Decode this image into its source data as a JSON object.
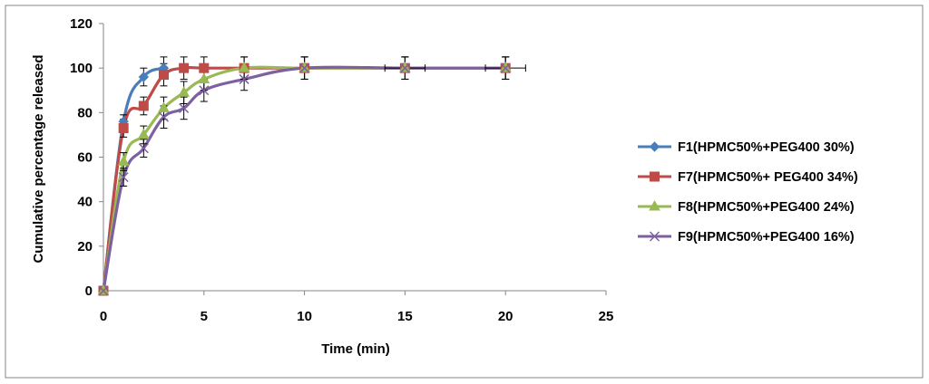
{
  "chart_data": {
    "type": "line",
    "xlabel": "Time (min)",
    "ylabel": "Cumulative percentage released",
    "xlim": [
      0,
      25
    ],
    "ylim": [
      0,
      120
    ],
    "x_ticks": [
      0,
      5,
      10,
      15,
      20,
      25
    ],
    "y_ticks": [
      0,
      20,
      40,
      60,
      80,
      100,
      120
    ],
    "grid": false,
    "legend_position": "right",
    "error_bars": true,
    "series": [
      {
        "name": "F1(HPMC50%+PEG400 30%)",
        "color": "#4a7ebb",
        "marker": "diamond",
        "points": [
          {
            "x": 0,
            "y": 0,
            "err": 0
          },
          {
            "x": 1,
            "y": 76,
            "err": 3
          },
          {
            "x": 2,
            "y": 96,
            "err": 4
          },
          {
            "x": 3,
            "y": 100,
            "err": 5
          }
        ]
      },
      {
        "name": "F7(HPMC50%+ PEG400 34%)",
        "color": "#be4b48",
        "marker": "square",
        "points": [
          {
            "x": 0,
            "y": 0,
            "err": 0
          },
          {
            "x": 1,
            "y": 73,
            "err": 4
          },
          {
            "x": 2,
            "y": 83,
            "err": 4
          },
          {
            "x": 3,
            "y": 97,
            "err": 5
          },
          {
            "x": 4,
            "y": 100,
            "err": 5
          },
          {
            "x": 5,
            "y": 100,
            "err": 5
          },
          {
            "x": 7,
            "y": 100,
            "err": 5
          },
          {
            "x": 10,
            "y": 100,
            "err": 5
          },
          {
            "x": 15,
            "y": 100,
            "err": 5
          },
          {
            "x": 20,
            "y": 100,
            "err": 5
          }
        ]
      },
      {
        "name": "F8(HPMC50%+PEG400 24%)",
        "color": "#98b954",
        "marker": "triangle",
        "points": [
          {
            "x": 0,
            "y": 0,
            "err": 0
          },
          {
            "x": 1,
            "y": 58,
            "err": 4
          },
          {
            "x": 2,
            "y": 70,
            "err": 4
          },
          {
            "x": 3,
            "y": 82,
            "err": 5
          },
          {
            "x": 4,
            "y": 89,
            "err": 5
          },
          {
            "x": 5,
            "y": 95,
            "err": 5
          },
          {
            "x": 7,
            "y": 100,
            "err": 5
          },
          {
            "x": 10,
            "y": 100,
            "err": 5
          },
          {
            "x": 15,
            "y": 100,
            "err": 5
          },
          {
            "x": 20,
            "y": 100,
            "err": 5
          }
        ]
      },
      {
        "name": "F9(HPMC50%+PEG400 16%)",
        "color": "#7d60a0",
        "marker": "x",
        "points": [
          {
            "x": 0,
            "y": 0,
            "err": 0
          },
          {
            "x": 1,
            "y": 51,
            "err": 4
          },
          {
            "x": 2,
            "y": 64,
            "err": 4
          },
          {
            "x": 3,
            "y": 78,
            "err": 5
          },
          {
            "x": 4,
            "y": 82,
            "err": 5
          },
          {
            "x": 5,
            "y": 90,
            "err": 5
          },
          {
            "x": 7,
            "y": 95,
            "err": 5
          },
          {
            "x": 10,
            "y": 100,
            "err": 5
          },
          {
            "x": 15,
            "y": 100,
            "err": 5,
            "xerr": 1
          },
          {
            "x": 20,
            "y": 100,
            "err": 5,
            "xerr": 1
          }
        ]
      }
    ]
  }
}
